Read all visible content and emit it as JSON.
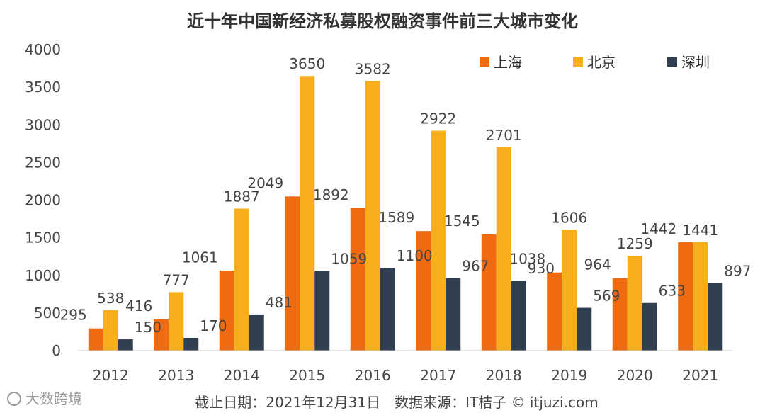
{
  "chart_data": {
    "type": "bar",
    "title": "近十年中国新经济私募股权融资事件前三大城市变化",
    "categories": [
      "2012",
      "2013",
      "2014",
      "2015",
      "2016",
      "2017",
      "2018",
      "2019",
      "2020",
      "2021"
    ],
    "series": [
      {
        "name": "上海",
        "color": "#f06a0f",
        "values": [
          295,
          416,
          1061,
          2049,
          1892,
          1589,
          1545,
          1038,
          964,
          1442
        ]
      },
      {
        "name": "北京",
        "color": "#f7ae1c",
        "values": [
          538,
          777,
          1887,
          3650,
          3582,
          2922,
          2701,
          1606,
          1259,
          1441
        ]
      },
      {
        "name": "深圳",
        "color": "#2f3f50",
        "values": [
          150,
          170,
          481,
          1059,
          1100,
          967,
          930,
          569,
          633,
          897
        ]
      }
    ],
    "ylim": [
      0,
      4000
    ],
    "yticks": [
      0,
      500,
      1000,
      1500,
      2000,
      2500,
      3000,
      3500,
      4000
    ],
    "grid": false,
    "legend": "top-right"
  },
  "footer": "截止日期：2021年12月31日　数据来源：IT桔子 © itjuzi.com",
  "watermark": "大数跨境"
}
